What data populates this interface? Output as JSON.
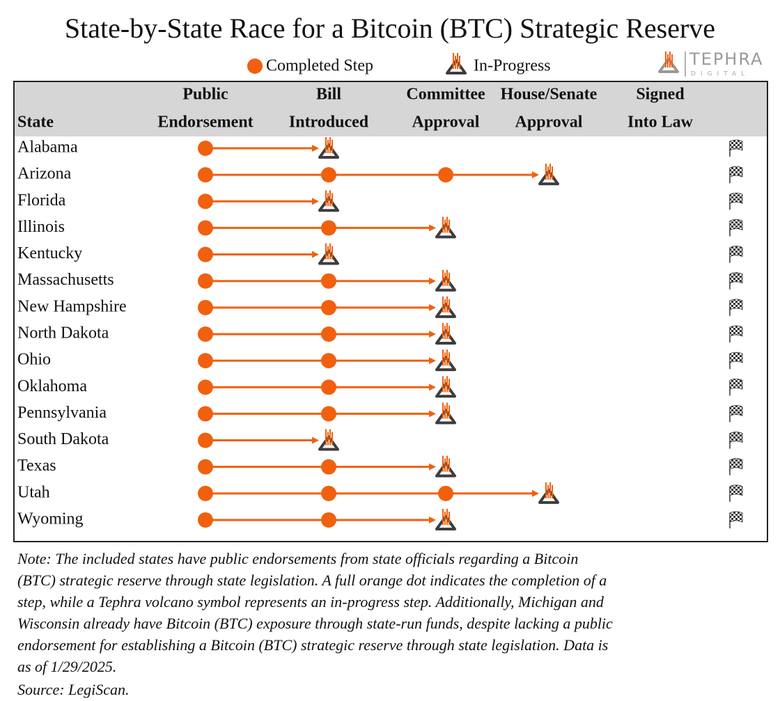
{
  "header": {
    "title": "State-by-State Race for a Bitcoin (BTC) Strategic Reserve"
  },
  "legend": {
    "completed": "Completed Step",
    "in_progress": "In-Progress"
  },
  "logo": {
    "name": "TEPHRA",
    "sub": "DIGITAL"
  },
  "table": {
    "state_header": "State",
    "columns": [
      [
        "Public",
        "Endorsement"
      ],
      [
        "Bill",
        "Introduced"
      ],
      [
        "Committee",
        "Approval"
      ],
      [
        "House/Senate",
        "Approval"
      ],
      [
        "Signed",
        "Into Law"
      ]
    ],
    "rows": [
      {
        "state": "Alabama",
        "completed": 1
      },
      {
        "state": "Arizona",
        "completed": 3
      },
      {
        "state": "Florida",
        "completed": 1
      },
      {
        "state": "Illinois",
        "completed": 2
      },
      {
        "state": "Kentucky",
        "completed": 1
      },
      {
        "state": "Massachusetts",
        "completed": 2
      },
      {
        "state": "New Hampshire",
        "completed": 2
      },
      {
        "state": "North Dakota",
        "completed": 2
      },
      {
        "state": "Ohio",
        "completed": 2
      },
      {
        "state": "Oklahoma",
        "completed": 2
      },
      {
        "state": "Pennsylvania",
        "completed": 2
      },
      {
        "state": "South Dakota",
        "completed": 1
      },
      {
        "state": "Texas",
        "completed": 2
      },
      {
        "state": "Utah",
        "completed": 3
      },
      {
        "state": "Wyoming",
        "completed": 2
      }
    ]
  },
  "note": [
    "Note: The included states have public endorsements from state officials regarding a Bitcoin",
    "(BTC) strategic reserve through state legislation. A full orange dot indicates the completion of a",
    "step, while a Tephra volcano symbol represents an in-progress step. Additionally, Michigan and",
    "Wisconsin already have Bitcoin (BTC) exposure through state-run funds, despite lacking a public",
    "endorsement for establishing a Bitcoin (BTC) strategic reserve through state legislation. Data is",
    "as of 1/29/2025."
  ],
  "source": "Source: LegiScan."
}
